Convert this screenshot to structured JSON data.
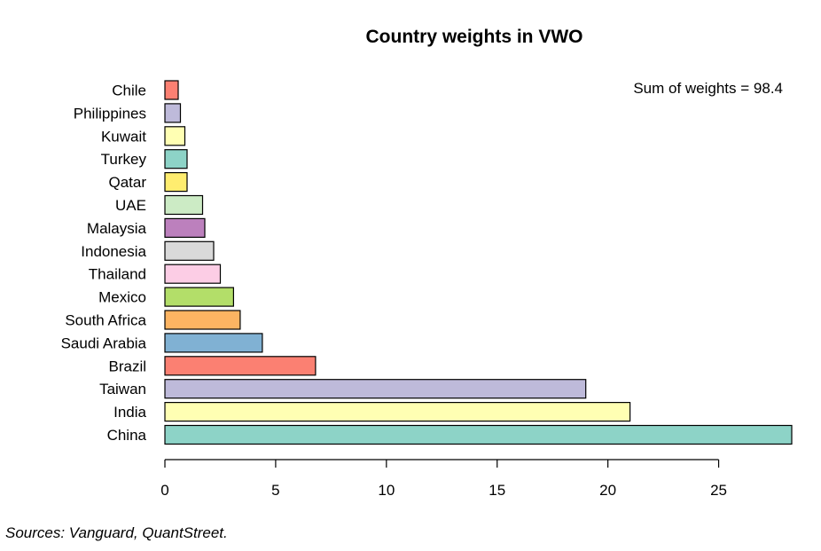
{
  "chart_data": {
    "type": "bar",
    "orientation": "horizontal",
    "title": "Country weights in VWO",
    "categories": [
      "China",
      "India",
      "Taiwan",
      "Brazil",
      "Saudi Arabia",
      "South Africa",
      "Mexico",
      "Thailand",
      "Indonesia",
      "Malaysia",
      "UAE",
      "Qatar",
      "Turkey",
      "Kuwait",
      "Philippines",
      "Chile"
    ],
    "values": [
      28.3,
      21.0,
      19.0,
      6.8,
      4.4,
      3.4,
      3.1,
      2.5,
      2.2,
      1.8,
      1.7,
      1.0,
      1.0,
      0.9,
      0.7,
      0.6
    ],
    "colors": [
      "#8DD3C7",
      "#FFFFB3",
      "#BEBADA",
      "#FB8072",
      "#80B1D3",
      "#FDB462",
      "#B3DE69",
      "#FCCDE5",
      "#D9D9D9",
      "#BC80BD",
      "#CCEBC5",
      "#FFED6F",
      "#8DD3C7",
      "#FFFFB3",
      "#BEBADA",
      "#FB8072"
    ],
    "xlim": [
      0,
      28.3
    ],
    "xticks": [
      0,
      5,
      10,
      15,
      20,
      25
    ],
    "xlabel": "",
    "ylabel": "",
    "annotation": "Sum of weights = 98.4",
    "grid": false,
    "legend": "none"
  },
  "source_note": "Sources: Vanguard, QuantStreet."
}
